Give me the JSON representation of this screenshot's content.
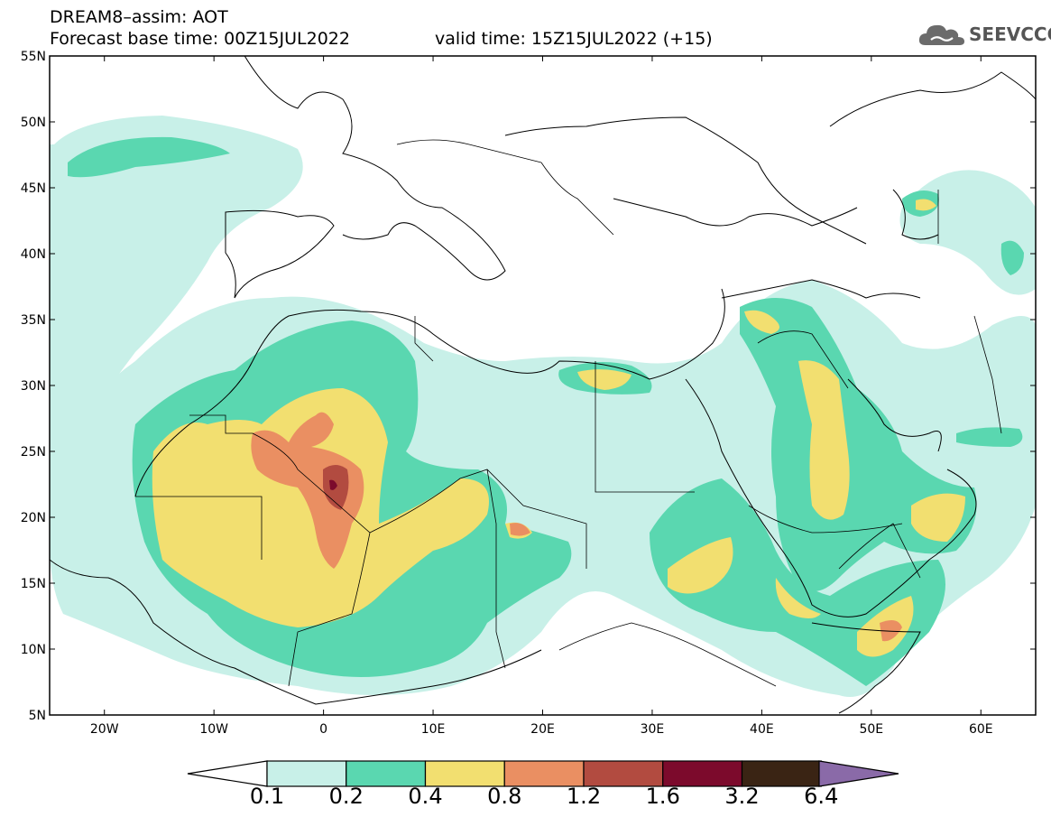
{
  "header": {
    "line1": "DREAM8–assim: AOT",
    "line2": "Forecast base time: 00Z15JUL2022",
    "line3": "valid time: 15Z15JUL2022 (+15)"
  },
  "logo": {
    "text": "SEEVCCC",
    "icon": "cloud-icon"
  },
  "map": {
    "lat_range": [
      5,
      55
    ],
    "lon_range": [
      -25,
      65
    ],
    "lat_labels": [
      "55N",
      "50N",
      "45N",
      "40N",
      "35N",
      "30N",
      "25N",
      "20N",
      "15N",
      "10N",
      "5N"
    ],
    "lon_labels": [
      "20W",
      "10W",
      "0",
      "10E",
      "20E",
      "30E",
      "40E",
      "50E",
      "60E"
    ]
  },
  "colorbar": {
    "levels": [
      "0.1",
      "0.2",
      "0.4",
      "0.8",
      "1.2",
      "1.6",
      "3.2",
      "6.4"
    ],
    "colors": [
      "#c8f0e8",
      "#5ad7b0",
      "#f2df70",
      "#ea8f62",
      "#b24b40",
      "#7c0a2c",
      "#3a2414",
      "#8a6aa8"
    ]
  }
}
